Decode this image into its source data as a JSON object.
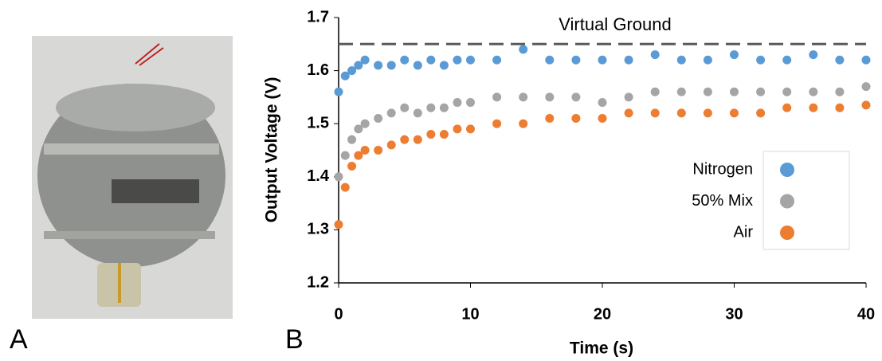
{
  "panel_labels": [
    "A",
    "B"
  ],
  "chart_data": {
    "type": "scatter",
    "x_label": "Time (s)",
    "y_label": "Output Voltage (V)",
    "xlim": [
      0,
      40
    ],
    "xticks": [
      0,
      10,
      20,
      30,
      40
    ],
    "ylim": [
      1.2,
      1.7
    ],
    "yticks": [
      1.2,
      1.3,
      1.4,
      1.5,
      1.6,
      1.7
    ],
    "reference_line": {
      "value": 1.65,
      "label": "Virtual Ground",
      "color": "#595959"
    },
    "legend": "center-right",
    "x": [
      0,
      0.5,
      1,
      1.5,
      2,
      3,
      4,
      5,
      6,
      7,
      8,
      9,
      10,
      12,
      14,
      16,
      18,
      20,
      22,
      24,
      26,
      28,
      30,
      32,
      34,
      36,
      38,
      40
    ],
    "series": [
      {
        "name": "Nitrogen",
        "color": "#5b9bd5",
        "values": [
          1.56,
          1.59,
          1.6,
          1.61,
          1.62,
          1.61,
          1.61,
          1.62,
          1.61,
          1.62,
          1.61,
          1.62,
          1.62,
          1.62,
          1.64,
          1.62,
          1.62,
          1.62,
          1.62,
          1.63,
          1.62,
          1.62,
          1.63,
          1.62,
          1.62,
          1.63,
          1.62,
          1.62
        ]
      },
      {
        "name": "50% Mix",
        "color": "#a5a5a5",
        "values": [
          1.4,
          1.44,
          1.47,
          1.49,
          1.5,
          1.51,
          1.52,
          1.53,
          1.52,
          1.53,
          1.53,
          1.54,
          1.54,
          1.55,
          1.55,
          1.55,
          1.55,
          1.54,
          1.55,
          1.56,
          1.56,
          1.56,
          1.56,
          1.56,
          1.56,
          1.56,
          1.56,
          1.57
        ]
      },
      {
        "name": "Air",
        "color": "#ed7d31",
        "values": [
          1.31,
          1.38,
          1.42,
          1.44,
          1.45,
          1.45,
          1.46,
          1.47,
          1.47,
          1.48,
          1.48,
          1.49,
          1.49,
          1.5,
          1.5,
          1.51,
          1.51,
          1.51,
          1.52,
          1.52,
          1.52,
          1.52,
          1.52,
          1.52,
          1.53,
          1.53,
          1.53,
          1.535
        ]
      }
    ]
  }
}
